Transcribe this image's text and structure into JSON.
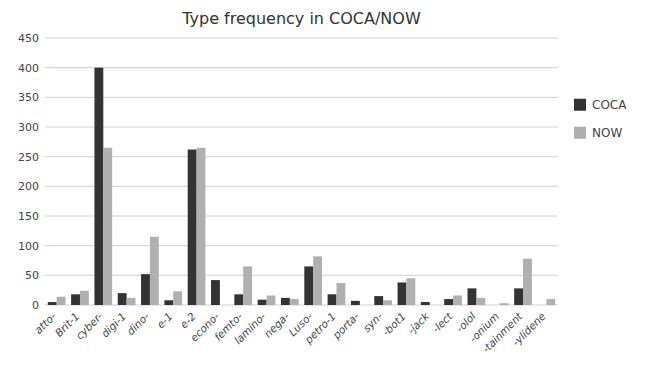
{
  "chart_data": {
    "type": "bar",
    "title": "Type frequency in COCA/NOW",
    "categories": [
      "atto-",
      "Brit-1",
      "cyber-",
      "digi-1",
      "dino-",
      "e-1",
      "e-2",
      "econo-",
      "femto-",
      "lamino-",
      "nega-",
      "Luso-",
      "petro-1",
      "porta-",
      "syn-",
      "-bot1",
      "-jack",
      "-lect",
      "-olol",
      "-onium",
      "-tainment",
      "-ylidene"
    ],
    "series": [
      {
        "name": "COCA",
        "color": "#333333",
        "values": [
          5,
          18,
          400,
          20,
          52,
          8,
          262,
          42,
          18,
          9,
          12,
          65,
          18,
          7,
          15,
          38,
          5,
          10,
          28,
          0,
          28,
          0
        ]
      },
      {
        "name": "NOW",
        "color": "#b0b0b0",
        "values": [
          14,
          24,
          265,
          12,
          115,
          23,
          265,
          0,
          65,
          16,
          10,
          82,
          37,
          0,
          8,
          45,
          0,
          16,
          12,
          3,
          78,
          10
        ]
      }
    ],
    "ylim": [
      0,
      450
    ],
    "yticks": [
      0,
      50,
      100,
      150,
      200,
      250,
      300,
      350,
      400,
      450
    ],
    "grid": true,
    "legend": "right"
  }
}
